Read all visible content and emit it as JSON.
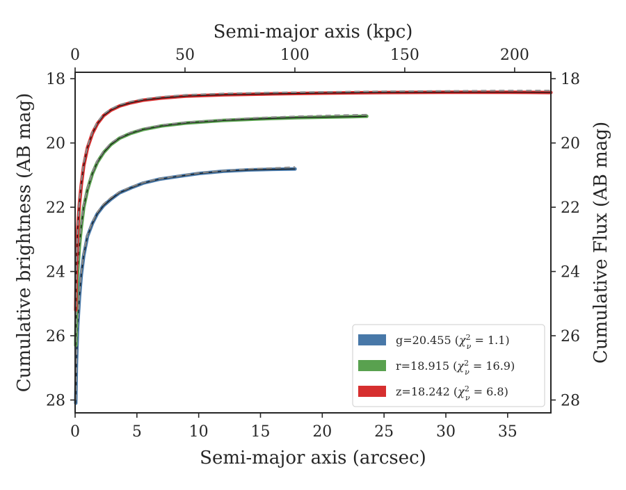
{
  "chart_data": {
    "type": "line",
    "xlabel": "Semi-major axis (arcsec)",
    "ylabel": "Cumulative brightness (AB mag)",
    "top_xlabel": "Semi-major axis (kpc)",
    "right_ylabel": "Cumulative Flux (AB mag)",
    "xlim": [
      0,
      38.5
    ],
    "ylim": [
      28.4,
      17.8
    ],
    "y_inverted": true,
    "top_xlim": [
      0,
      216.5
    ],
    "x_ticks": [
      0,
      5,
      10,
      15,
      20,
      25,
      30,
      35
    ],
    "y_ticks": [
      18,
      20,
      22,
      24,
      26,
      28
    ],
    "top_x_ticks": [
      0,
      50,
      100,
      150,
      200
    ],
    "grid": false,
    "legend_position": "lower-right",
    "series": [
      {
        "name": "g=20.455 (χ²_ν = 1.1)",
        "legend_text": "g=20.455 (",
        "legend_chi": "χ",
        "legend_sup": "2",
        "legend_sub": "ν",
        "legend_val": " = 1.1)",
        "color": "#4878a8",
        "x": [
          0.05,
          0.1,
          0.2,
          0.35,
          0.5,
          0.7,
          1.0,
          1.4,
          1.8,
          2.3,
          2.9,
          3.6,
          4.5,
          5.5,
          6.8,
          8.2,
          10.0,
          12.0,
          14.0,
          16.0,
          17.8
        ],
        "y": [
          28.1,
          26.9,
          25.7,
          24.8,
          24.1,
          23.5,
          22.9,
          22.5,
          22.2,
          21.95,
          21.75,
          21.55,
          21.4,
          21.25,
          21.13,
          21.05,
          20.95,
          20.88,
          20.84,
          20.82,
          20.81
        ],
        "model_y": [
          28.0,
          26.8,
          25.6,
          24.7,
          24.0,
          23.4,
          22.85,
          22.45,
          22.15,
          21.9,
          21.7,
          21.52,
          21.37,
          21.23,
          21.11,
          21.03,
          20.93,
          20.86,
          20.81,
          20.78,
          20.75
        ]
      },
      {
        "name": "r=18.915 (χ²_ν = 16.9)",
        "legend_text": "r=18.915 (",
        "legend_chi": "χ",
        "legend_sup": "2",
        "legend_sub": "ν",
        "legend_val": " = 16.9)",
        "color": "#59a14f",
        "x": [
          0.05,
          0.1,
          0.2,
          0.35,
          0.5,
          0.7,
          1.0,
          1.4,
          1.8,
          2.3,
          2.9,
          3.6,
          4.5,
          5.5,
          7.0,
          9.0,
          12.0,
          15.0,
          18.0,
          21.0,
          23.6
        ],
        "y": [
          26.3,
          25.0,
          24.0,
          23.2,
          22.6,
          22.0,
          21.45,
          20.95,
          20.6,
          20.3,
          20.05,
          19.85,
          19.7,
          19.58,
          19.47,
          19.38,
          19.3,
          19.25,
          19.21,
          19.19,
          19.17
        ],
        "model_y": [
          26.2,
          24.9,
          23.9,
          23.1,
          22.5,
          21.9,
          21.4,
          20.9,
          20.55,
          20.25,
          20.0,
          19.82,
          19.67,
          19.55,
          19.44,
          19.35,
          19.27,
          19.21,
          19.17,
          19.14,
          19.12
        ]
      },
      {
        "name": "z=18.242 (χ²_ν = 6.8)",
        "legend_text": "z=18.242 (",
        "legend_chi": "χ",
        "legend_sup": "2",
        "legend_sub": "ν",
        "legend_val": " = 6.8)",
        "color": "#d62f2f",
        "x": [
          0.05,
          0.1,
          0.2,
          0.35,
          0.5,
          0.7,
          1.0,
          1.4,
          1.8,
          2.3,
          2.9,
          3.6,
          4.5,
          5.5,
          7.0,
          9.0,
          12.0,
          16.0,
          20.0,
          25.0,
          30.0,
          35.0,
          38.5
        ],
        "y": [
          25.2,
          23.8,
          22.7,
          21.9,
          21.3,
          20.7,
          20.15,
          19.7,
          19.4,
          19.15,
          18.98,
          18.85,
          18.75,
          18.67,
          18.6,
          18.54,
          18.5,
          18.47,
          18.45,
          18.43,
          18.42,
          18.42,
          18.43
        ],
        "model_y": [
          25.1,
          23.7,
          22.6,
          21.8,
          21.2,
          20.6,
          20.1,
          19.65,
          19.35,
          19.1,
          18.94,
          18.81,
          18.71,
          18.63,
          18.56,
          18.5,
          18.46,
          18.43,
          18.41,
          18.39,
          18.38,
          18.37,
          18.37
        ]
      }
    ]
  }
}
